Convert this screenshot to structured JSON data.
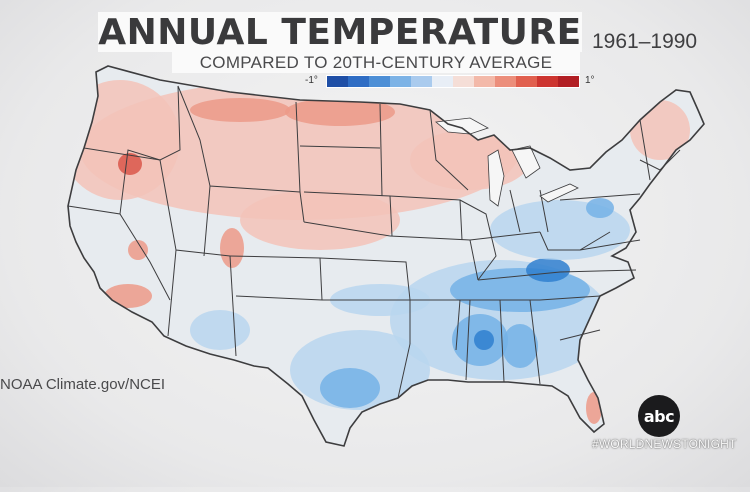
{
  "header": {
    "title": "ANNUAL TEMPERATURE",
    "period": "1961–1990",
    "subtitle": "COMPARED TO 20TH-CENTURY AVERAGE"
  },
  "legend": {
    "min_label": "-1°",
    "max_label": "1°",
    "colors": [
      "#1f4fa6",
      "#2f6dc4",
      "#4d8fd6",
      "#7db3e6",
      "#aacbee",
      "#e8eef6",
      "#f5ded7",
      "#f3b9a9",
      "#ec8e7b",
      "#e1604f",
      "#cd3530",
      "#b21f24"
    ]
  },
  "source": "NOAA Climate.gov/NCEI",
  "branding": {
    "logo_text": "abc",
    "hashtag": "#WORLDNEWSTONIGHT"
  },
  "map": {
    "colors": {
      "land": "#e7ebef",
      "border": "#3d3d3f",
      "warm_light": "#f3c3b8",
      "warm": "#ec9a88",
      "warm_strong": "#d9574a",
      "cool_light": "#b8d6ef",
      "cool": "#74b2e6",
      "cool_strong": "#2f7fcf"
    }
  }
}
